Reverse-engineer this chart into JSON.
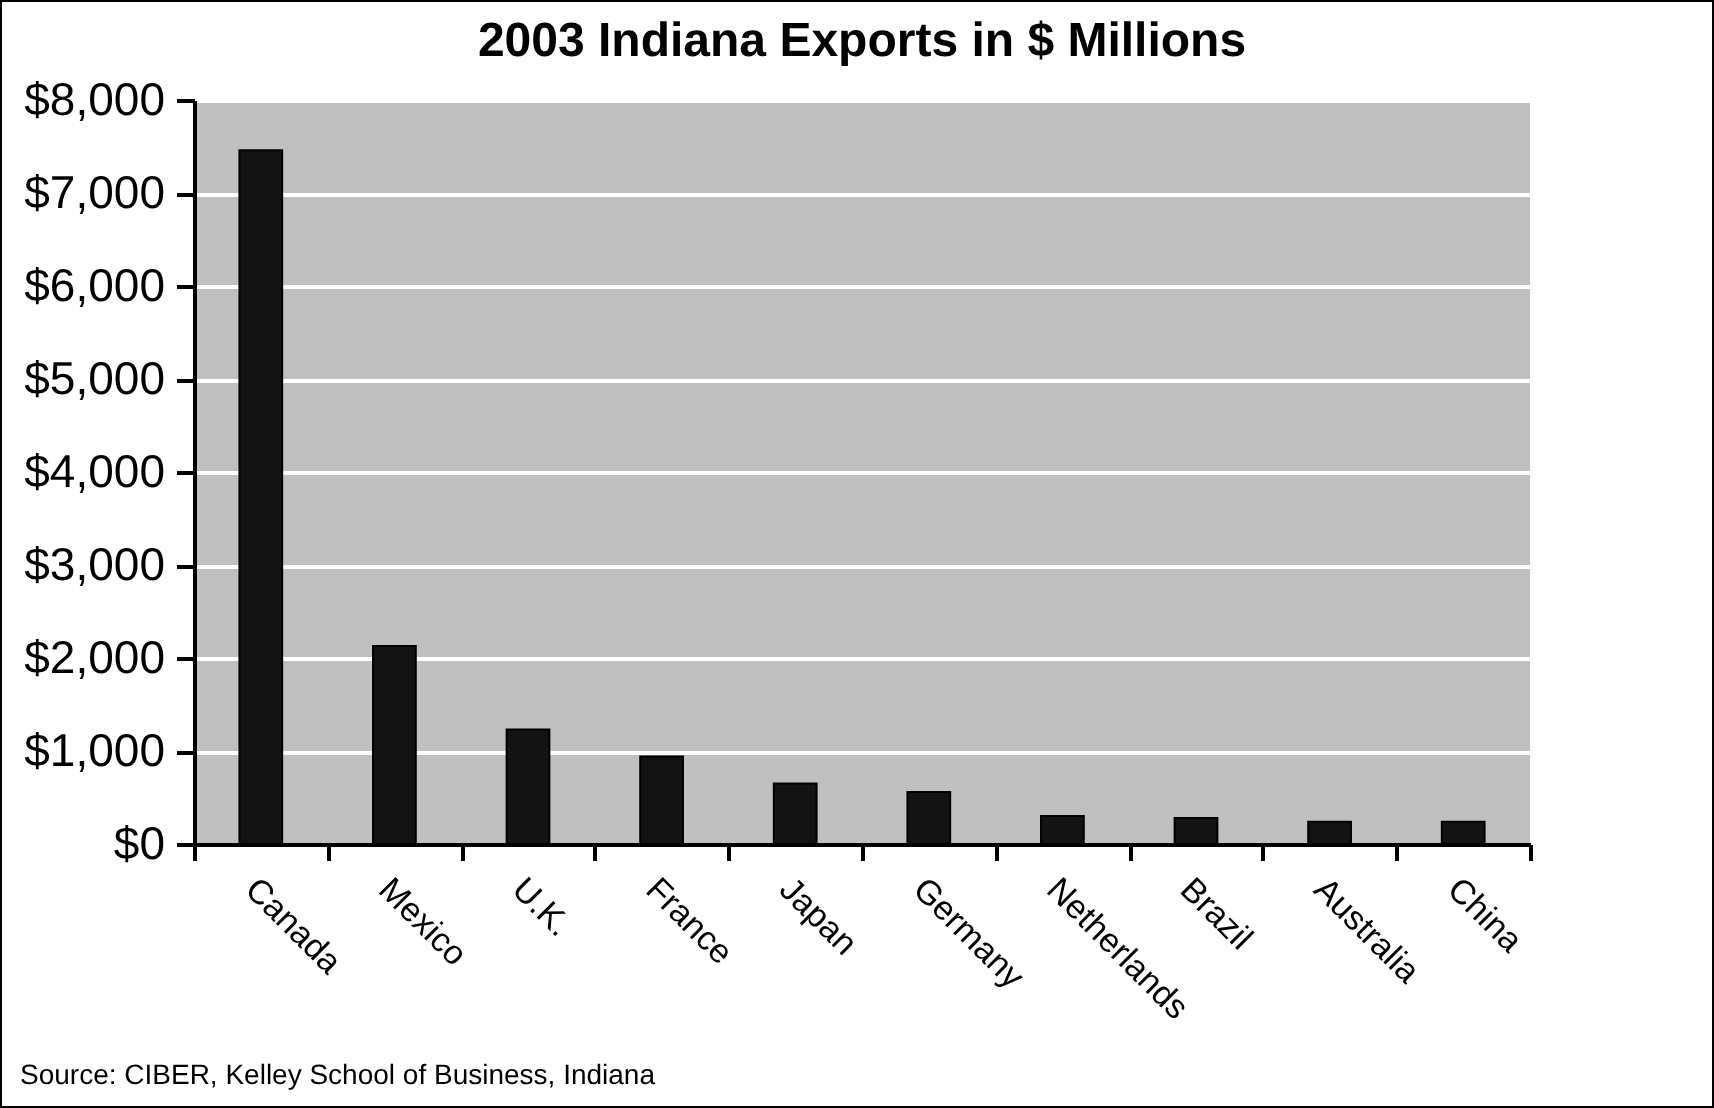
{
  "chart_data": {
    "type": "bar",
    "title": "2003 Indiana Exports in $ Millions",
    "categories": [
      "Canada",
      "Mexico",
      "U.K.",
      "France",
      "Japan",
      "Germany",
      "Netherlands",
      "Brazil",
      "Australia",
      "China"
    ],
    "values": [
      7460,
      2130,
      1230,
      940,
      650,
      560,
      300,
      280,
      240,
      240
    ],
    "color": "#131313",
    "ylim": [
      0,
      8000
    ],
    "yticks": [
      {
        "value": 0,
        "label": "$0"
      },
      {
        "value": 1000,
        "label": "$1,000"
      },
      {
        "value": 2000,
        "label": "$2,000"
      },
      {
        "value": 3000,
        "label": "$3,000"
      },
      {
        "value": 4000,
        "label": "$4,000"
      },
      {
        "value": 5000,
        "label": "$5,000"
      },
      {
        "value": 6000,
        "label": "$6,000"
      },
      {
        "value": 7000,
        "label": "$7,000"
      },
      {
        "value": 8000,
        "label": "$8,000"
      }
    ],
    "grid": "y",
    "annotations": [
      "Source: CIBER, Kelley School of Business, Indiana"
    ]
  }
}
